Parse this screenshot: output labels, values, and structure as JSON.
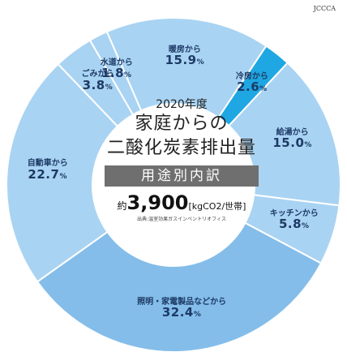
{
  "chart_data": {
    "type": "pie",
    "categories": [
      "暖房から",
      "冷房から",
      "給湯から",
      "キッチンから",
      "照明・家電製品などから",
      "自動車から",
      "ごみから",
      "水道から"
    ],
    "values": [
      15.9,
      2.6,
      15.0,
      5.8,
      32.4,
      22.7,
      3.8,
      1.8
    ],
    "value_labels": [
      "15.9",
      "2.6",
      "15.0",
      "5.8",
      "32.4",
      "22.7",
      "3.8",
      "1.8"
    ],
    "unit": "%",
    "colors": [
      "#a9d3f2",
      "#1ea7e2",
      "#a9d3f2",
      "#a9d3f2",
      "#84bde9",
      "#a9d3f2",
      "#a9d3f2",
      "#a9d3f2"
    ],
    "center": {
      "year": "2020年度",
      "title_line1": "家庭からの",
      "title_line2": "二酸化炭素排出量",
      "band": "用途別内訳",
      "total_prefix": "約",
      "total_value": "3,900",
      "total_unit": "[kgCO2/世帯]",
      "source": "出典:温室効果ガスインベントリオフィス"
    }
  },
  "logo_text": "JCCCA"
}
